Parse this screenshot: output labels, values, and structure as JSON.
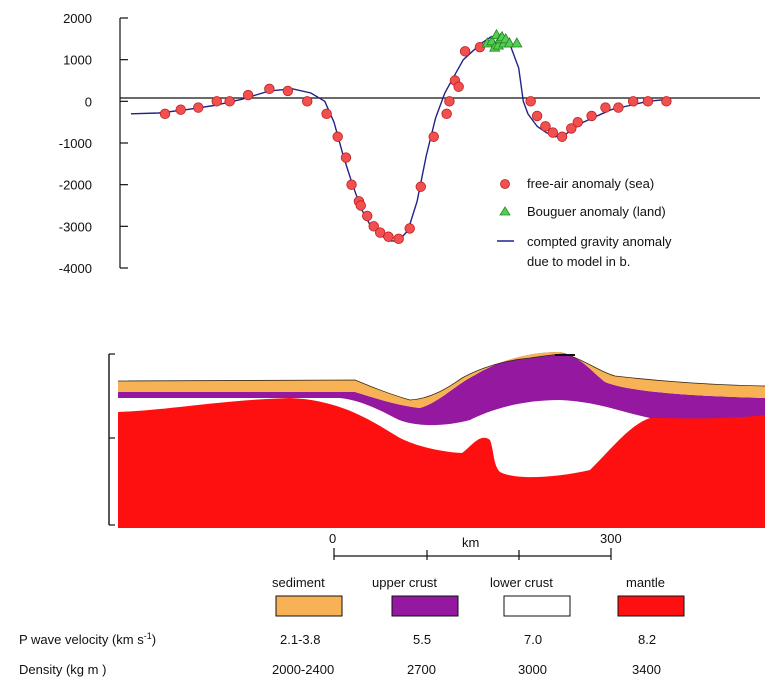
{
  "chart_data": [
    {
      "type": "scatter",
      "title": "",
      "xlabel": "",
      "ylabel": "",
      "ylim": [
        -4000,
        2000
      ],
      "yticks": [
        2000,
        1000,
        0,
        -1000,
        -2000,
        -3000,
        -4000
      ],
      "grid": false,
      "zero_line": true,
      "legend_position": "bottom-right",
      "x_note": "x positions in km along profile (0 and 300 labelled on scale bar)",
      "series": [
        {
          "name": "free-air anomaly (sea)",
          "marker": "circle",
          "color": "#f05050",
          "x": [
            -183,
            -166,
            -147,
            -127,
            -113,
            -93,
            -70,
            -50,
            -29,
            -8,
            4,
            13,
            19,
            27,
            29,
            36,
            43,
            50,
            59,
            70,
            82,
            94,
            108,
            122,
            125,
            131,
            135,
            142,
            158,
            213,
            220,
            229,
            237,
            247,
            257,
            264,
            279,
            294,
            308,
            324,
            340,
            360
          ],
          "y": [
            -300,
            -200,
            -150,
            0,
            0,
            150,
            300,
            250,
            0,
            -300,
            -850,
            -1350,
            -2000,
            -2400,
            -2500,
            -2750,
            -3000,
            -3150,
            -3250,
            -3300,
            -3050,
            -2050,
            -850,
            -300,
            0,
            500,
            350,
            1200,
            1300,
            0,
            -350,
            -600,
            -750,
            -850,
            -650,
            -500,
            -350,
            -150,
            -150,
            0,
            0,
            0
          ]
        },
        {
          "name": "Bouguer anomaly (land)",
          "marker": "triangle",
          "color": "#33aa33",
          "x": [
            166,
            171,
            174,
            176,
            178,
            180,
            182,
            184,
            186,
            190,
            198
          ],
          "y": [
            1400,
            1450,
            1300,
            1600,
            1350,
            1500,
            1550,
            1400,
            1500,
            1400,
            1400
          ]
        },
        {
          "name": "compted gravity anomaly due to model in b.",
          "marker": "line",
          "color": "#22228a",
          "x": [
            -220,
            -190,
            -160,
            -130,
            -100,
            -70,
            -45,
            -25,
            -10,
            0,
            10,
            20,
            30,
            40,
            50,
            60,
            70,
            80,
            90,
            100,
            110,
            120,
            130,
            140,
            150,
            160,
            170,
            180,
            190,
            200,
            205,
            210,
            220,
            230,
            240,
            250,
            260,
            270,
            280,
            290,
            300,
            320,
            340,
            362
          ],
          "y": [
            -300,
            -280,
            -200,
            -100,
            50,
            250,
            300,
            200,
            0,
            -500,
            -1300,
            -2000,
            -2600,
            -3000,
            -3200,
            -3350,
            -3350,
            -3100,
            -2400,
            -1300,
            -400,
            200,
            600,
            1000,
            1200,
            1400,
            1550,
            1550,
            1400,
            800,
            0,
            -300,
            -600,
            -750,
            -850,
            -800,
            -650,
            -500,
            -400,
            -300,
            -200,
            -100,
            0,
            50
          ]
        }
      ],
      "ytick_labels": [
        "2000",
        "1000",
        "0",
        "-1000",
        "-2000",
        "-3000",
        "-4000"
      ],
      "legend": [
        {
          "label": "free-air anomaly (sea)",
          "marker": "circle"
        },
        {
          "label": "Bouguer anomaly (land)",
          "marker": "triangle"
        },
        {
          "label": "compted gravity anomaly",
          "label2": "due to model in b.",
          "marker": "line"
        }
      ]
    },
    {
      "type": "area",
      "title": "",
      "description_type": "cross-section model",
      "scale_bar": {
        "labels": [
          "0",
          "km",
          "300"
        ]
      },
      "layers": [
        {
          "name": "sediment",
          "color": "#f7b255",
          "p_wave_velocity": "2.1-3.8",
          "density": "2000-2400"
        },
        {
          "name": "upper crust",
          "color": "#9418a0",
          "p_wave_velocity": "5.5",
          "density": "2700"
        },
        {
          "name": "lower crust",
          "color": "#ffffff",
          "p_wave_velocity": "7.0",
          "density": "3000"
        },
        {
          "name": "mantle",
          "color": "#ff1010",
          "p_wave_velocity": "8.2",
          "density": "3400"
        }
      ],
      "row_labels": {
        "velocity": "P wave velocity (km s",
        "velocity_sup": "-1",
        "velocity_end": ")",
        "density": "Density (kg m  )"
      }
    }
  ]
}
